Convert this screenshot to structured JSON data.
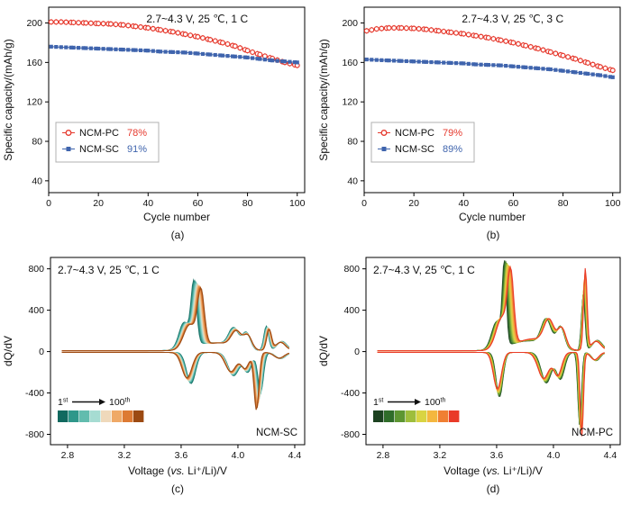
{
  "page": {
    "background": "#ffffff"
  },
  "chart_data": [
    {
      "id": "a",
      "type": "scatter",
      "caption": "(a)",
      "annotation": "2.7~4.3 V, 25 ℃, 1 C",
      "xlabel": "Cycle number",
      "ylabel": "Specific capacity/(mAh/g)",
      "xlim": [
        0,
        103
      ],
      "ylim": [
        28,
        216
      ],
      "xticks": [
        0,
        20,
        40,
        60,
        80,
        100
      ],
      "yticks": [
        40,
        80,
        120,
        160,
        200
      ],
      "series": [
        {
          "name": "NCM-PC",
          "retention": "78%",
          "color": "#e63a2e",
          "marker": "circle",
          "errorbars": true,
          "x": [
            1,
            5,
            10,
            15,
            20,
            25,
            30,
            35,
            40,
            45,
            50,
            55,
            60,
            65,
            70,
            75,
            80,
            85,
            90,
            95,
            100
          ],
          "y": [
            201,
            201,
            200.5,
            200,
            199.5,
            199,
            198,
            196.5,
            195,
            193,
            191,
            188.5,
            186,
            183,
            180,
            176.5,
            172,
            168,
            164,
            160,
            157
          ]
        },
        {
          "name": "NCM-SC",
          "retention": "91%",
          "color": "#3f64ad",
          "marker": "square",
          "errorbars": false,
          "x": [
            1,
            5,
            10,
            15,
            20,
            25,
            30,
            35,
            40,
            45,
            50,
            55,
            60,
            65,
            70,
            75,
            80,
            85,
            90,
            95,
            100
          ],
          "y": [
            176,
            175.5,
            175,
            174.5,
            174,
            173.5,
            173,
            172.5,
            172,
            171,
            170.5,
            170,
            169,
            168,
            167,
            166,
            165,
            163.5,
            162,
            161,
            160
          ]
        }
      ]
    },
    {
      "id": "b",
      "type": "scatter",
      "caption": "(b)",
      "annotation": "2.7~4.3 V, 25 ℃, 3 C",
      "xlabel": "Cycle number",
      "ylabel": "Specific capacity/(mAh/g)",
      "xlim": [
        0,
        103
      ],
      "ylim": [
        28,
        216
      ],
      "xticks": [
        0,
        20,
        40,
        60,
        80,
        100
      ],
      "yticks": [
        40,
        80,
        120,
        160,
        200
      ],
      "series": [
        {
          "name": "NCM-PC",
          "retention": "79%",
          "color": "#e63a2e",
          "marker": "circle",
          "errorbars": true,
          "x": [
            1,
            5,
            10,
            15,
            20,
            25,
            30,
            35,
            40,
            45,
            50,
            55,
            60,
            65,
            70,
            75,
            80,
            85,
            90,
            95,
            100
          ],
          "y": [
            192,
            194,
            195,
            195,
            194.5,
            193.5,
            192,
            190.5,
            189,
            187,
            185,
            182.5,
            180,
            177,
            174,
            170.5,
            167,
            163.5,
            159.5,
            155.5,
            152
          ]
        },
        {
          "name": "NCM-SC",
          "retention": "89%",
          "color": "#3f64ad",
          "marker": "square",
          "errorbars": false,
          "x": [
            1,
            5,
            10,
            15,
            20,
            25,
            30,
            35,
            40,
            45,
            50,
            55,
            60,
            65,
            70,
            75,
            80,
            85,
            90,
            95,
            100
          ],
          "y": [
            163,
            162.5,
            162,
            161.5,
            161,
            160.5,
            160,
            159.5,
            159,
            158,
            157.5,
            157,
            156,
            155,
            154,
            153,
            151.5,
            150,
            148.5,
            147,
            145
          ]
        }
      ]
    },
    {
      "id": "c",
      "type": "dqdv",
      "caption": "(c)",
      "annotation": "2.7~4.3 V, 25 ℃, 1 C",
      "xlabel_parts": {
        "pre": "Voltage (",
        "italic": "vs.",
        "post": " Li⁺/Li)/V"
      },
      "ylabel": "dQ/dV",
      "xlim": [
        2.68,
        4.47
      ],
      "ylim": [
        -900,
        910
      ],
      "xticks": [
        2.8,
        3.2,
        3.6,
        4.0,
        4.4
      ],
      "yticks": [
        -800,
        -400,
        0,
        400,
        800
      ],
      "sample_label": "NCM-SC",
      "cycle_legend": {
        "first_num": "1",
        "first_sup": "st",
        "last_num": "100",
        "last_sup": "th"
      },
      "colorbar": [
        "#11695f",
        "#2f978a",
        "#62bcae",
        "#a6dcd2",
        "#efd9bb",
        "#efa967",
        "#dd7a33",
        "#9c4a12"
      ],
      "curves": {
        "n": 14,
        "x_start": 2.76,
        "x_end": 4.36,
        "baseline": 8,
        "peaks_first": [
          [
            3.69,
            600,
            0.028
          ],
          [
            3.62,
            250,
            0.05
          ],
          [
            3.97,
            185,
            0.05
          ],
          [
            4.06,
            160,
            0.04
          ],
          [
            4.2,
            235,
            0.024
          ],
          [
            3.82,
            80,
            0.18
          ],
          [
            4.31,
            90,
            0.05
          ],
          [
            3.67,
            -300,
            0.045
          ],
          [
            3.97,
            -225,
            0.055
          ],
          [
            4.07,
            -185,
            0.04
          ],
          [
            4.16,
            -380,
            0.028
          ],
          [
            4.3,
            -60,
            0.05
          ]
        ],
        "peaks_last": [
          [
            3.74,
            520,
            0.034
          ],
          [
            3.66,
            230,
            0.06
          ],
          [
            3.99,
            150,
            0.05
          ],
          [
            4.07,
            125,
            0.04
          ],
          [
            4.22,
            200,
            0.024
          ],
          [
            3.86,
            75,
            0.18
          ],
          [
            4.3,
            80,
            0.05
          ],
          [
            3.64,
            -245,
            0.05
          ],
          [
            3.95,
            -185,
            0.055
          ],
          [
            4.05,
            -150,
            0.04
          ],
          [
            4.13,
            -555,
            0.024
          ],
          [
            4.29,
            -55,
            0.05
          ]
        ]
      }
    },
    {
      "id": "d",
      "type": "dqdv",
      "caption": "(d)",
      "annotation": "2.7~4.3 V, 25 ℃, 1 C",
      "xlabel_parts": {
        "pre": "Voltage (",
        "italic": "vs.",
        "post": " Li⁺/Li)/V"
      },
      "ylabel": "dQ/dV",
      "xlim": [
        2.68,
        4.47
      ],
      "ylim": [
        -900,
        910
      ],
      "xticks": [
        2.8,
        3.2,
        3.6,
        4.0,
        4.4
      ],
      "yticks": [
        -800,
        -400,
        0,
        400,
        800
      ],
      "sample_label": "NCM-PC",
      "cycle_legend": {
        "first_num": "1",
        "first_sup": "st",
        "last_num": "100",
        "last_sup": "th"
      },
      "colorbar": [
        "#1c4220",
        "#2f6d2a",
        "#5d9632",
        "#9ebe3c",
        "#d9d442",
        "#f4b73f",
        "#f07f32",
        "#e93a28"
      ],
      "curves": {
        "n": 14,
        "x_start": 2.76,
        "x_end": 4.36,
        "baseline": 8,
        "peaks_first": [
          [
            3.655,
            760,
            0.02
          ],
          [
            3.6,
            260,
            0.05
          ],
          [
            3.95,
            255,
            0.05
          ],
          [
            4.05,
            215,
            0.04
          ],
          [
            4.21,
            520,
            0.018
          ],
          [
            3.82,
            95,
            0.18
          ],
          [
            4.31,
            100,
            0.05
          ],
          [
            3.62,
            -430,
            0.034
          ],
          [
            3.95,
            -295,
            0.05
          ],
          [
            4.05,
            -255,
            0.04
          ],
          [
            4.185,
            -700,
            0.018
          ],
          [
            4.3,
            -80,
            0.04
          ]
        ],
        "peaks_last": [
          [
            3.7,
            640,
            0.03
          ],
          [
            3.64,
            300,
            0.06
          ],
          [
            3.97,
            230,
            0.05
          ],
          [
            4.06,
            185,
            0.04
          ],
          [
            4.225,
            790,
            0.017
          ],
          [
            3.86,
            115,
            0.18
          ],
          [
            4.3,
            90,
            0.05
          ],
          [
            3.605,
            -350,
            0.04
          ],
          [
            3.93,
            -250,
            0.055
          ],
          [
            4.03,
            -215,
            0.04
          ],
          [
            4.2,
            -810,
            0.016
          ],
          [
            4.29,
            -70,
            0.04
          ]
        ]
      }
    }
  ]
}
